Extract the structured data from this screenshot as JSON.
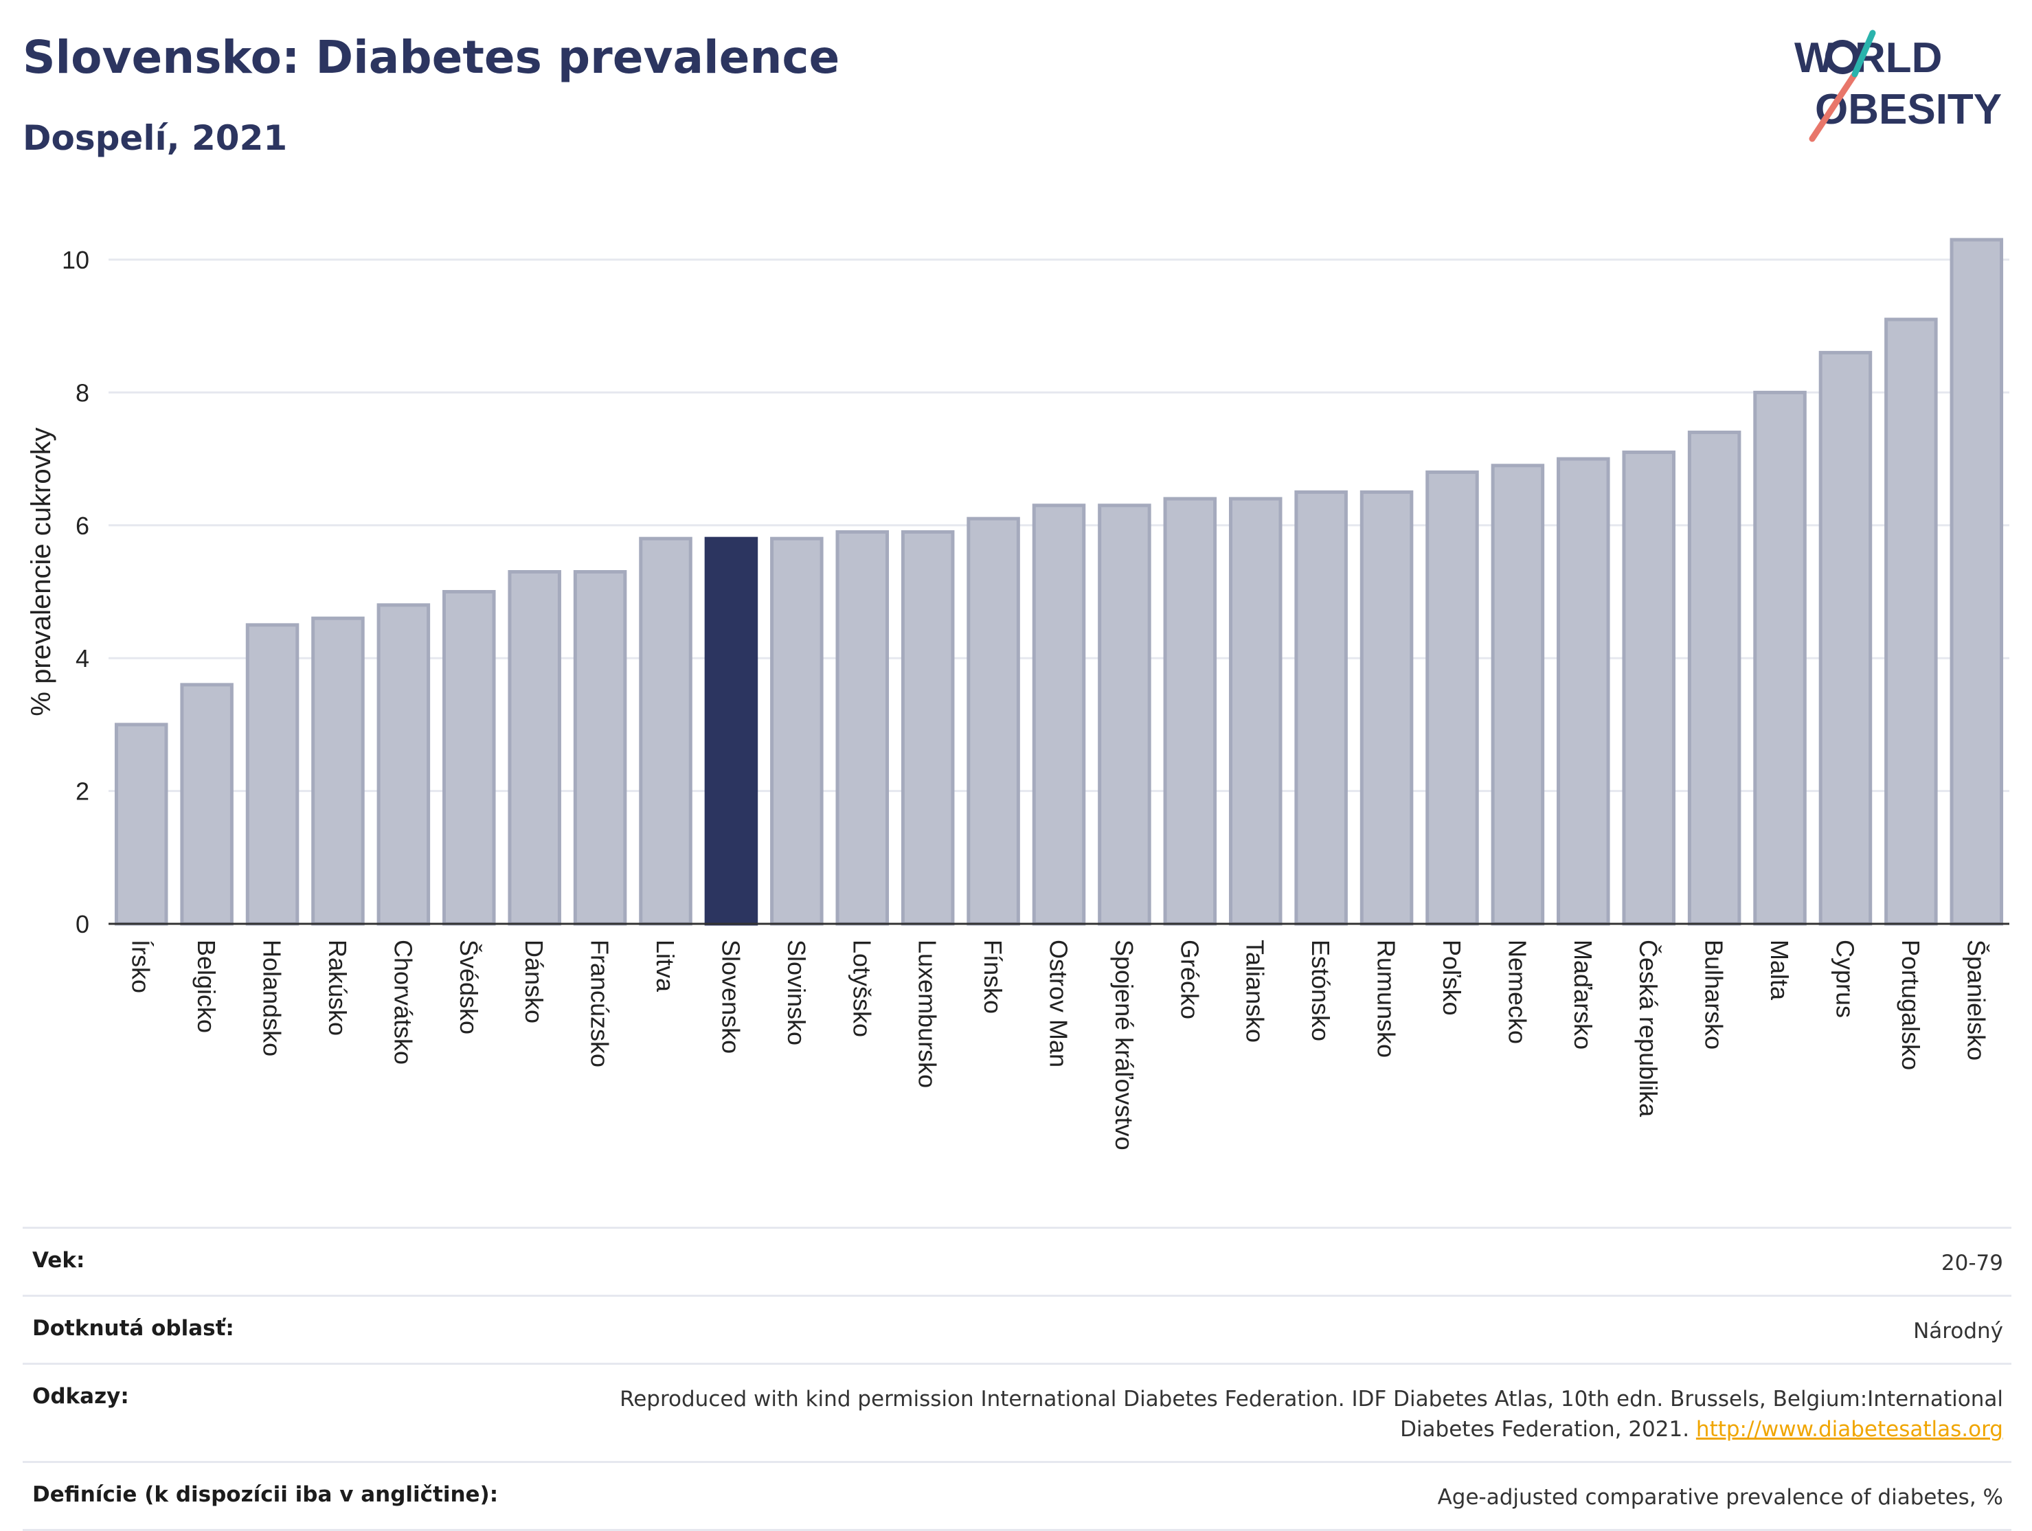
{
  "header": {
    "title": "Slovensko: Diabetes prevalence",
    "subtitle": "Dospelí, 2021"
  },
  "logo": {
    "line1": "WORLD",
    "line2": "OBESITY"
  },
  "colors": {
    "highlight": "#2c3560",
    "bar": "#bcc0ce",
    "bar_border": "#a5aabd",
    "grid": "#e6e8ef",
    "axis": "#333333",
    "logo_teal": "#2ab3ac",
    "logo_coral": "#e8766a"
  },
  "chart_data": {
    "type": "bar",
    "categories": [
      "Írsko",
      "Belgicko",
      "Holandsko",
      "Rakúsko",
      "Chorvátsko",
      "Švédsko",
      "Dánsko",
      "Francúzsko",
      "Litva",
      "Slovensko",
      "Slovinsko",
      "Lotyšsko",
      "Luxembursko",
      "Fínsko",
      "Ostrov Man",
      "Spojené kráľovstvo",
      "Grécko",
      "Taliansko",
      "Estónsko",
      "Rumunsko",
      "Poľsko",
      "Nemecko",
      "Maďarsko",
      "Česká republika",
      "Bulharsko",
      "Malta",
      "Cyprus",
      "Portugalsko",
      "Španielsko"
    ],
    "values": [
      3.0,
      3.6,
      4.5,
      4.6,
      4.8,
      5.0,
      5.3,
      5.3,
      5.8,
      5.8,
      5.8,
      5.9,
      5.9,
      6.1,
      6.3,
      6.3,
      6.4,
      6.4,
      6.5,
      6.5,
      6.8,
      6.9,
      7.0,
      7.1,
      7.4,
      8.0,
      8.6,
      9.1,
      10.3
    ],
    "highlight": "Slovensko",
    "ylabel": "% prevalencie cukrovky",
    "xlabel": "",
    "ylim": [
      0,
      10.6
    ],
    "yticks": [
      0,
      2,
      4,
      6,
      8,
      10
    ],
    "grid": true
  },
  "meta": {
    "rows": [
      {
        "label": "Vek:",
        "value": "20-79"
      },
      {
        "label": "Dotknutá oblasť:",
        "value": "Národný"
      },
      {
        "label": "Odkazy:",
        "value": "Reproduced with kind permission International Diabetes Federation.  IDF Diabetes Atlas, 10th edn. Brussels, Belgium:International Diabetes Federation, 2021.",
        "link": "http://www.diabetesatlas.org"
      },
      {
        "label": "Definície (k dispozícii iba v angličtine):",
        "value": "Age-adjusted comparative prevalence of diabetes, %"
      }
    ]
  }
}
